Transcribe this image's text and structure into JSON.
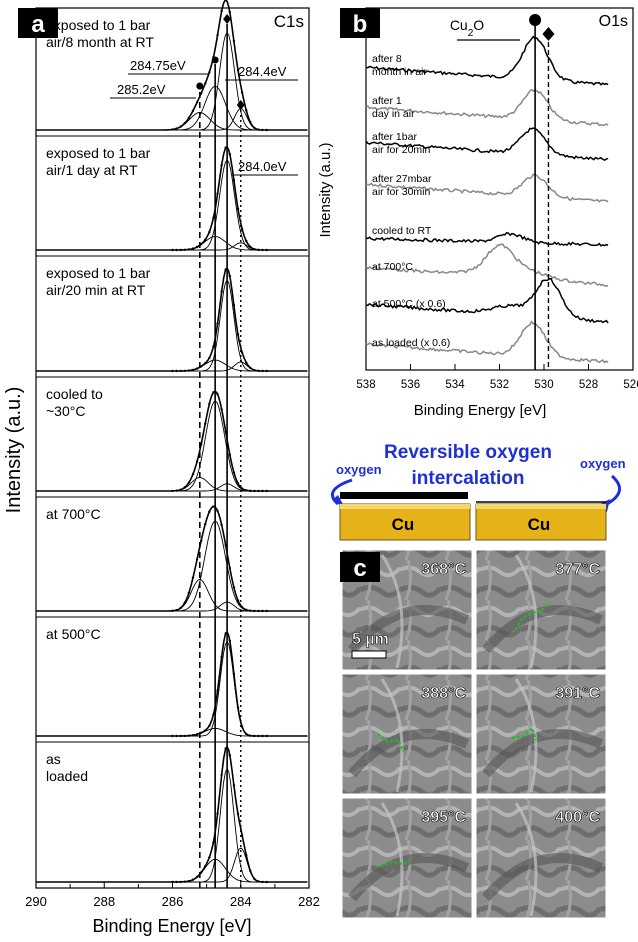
{
  "panel_a": {
    "letter": "a",
    "core_level": "C1s",
    "ylabel": "Intensity (a.u.)",
    "xlabel": "Binding Energy [eV]",
    "x_ticks": [
      "290",
      "288",
      "286",
      "284",
      "282"
    ],
    "peak_labels": [
      "284.75eV",
      "284.4eV",
      "285.2eV",
      "284.0eV"
    ],
    "spectra": [
      {
        "label_lines": [
          "exposed to 1 bar",
          "air/8 month at RT"
        ]
      },
      {
        "label_lines": [
          "exposed to 1 bar",
          "air/1 day at RT"
        ]
      },
      {
        "label_lines": [
          "exposed to 1 bar",
          "air/20 min at RT"
        ]
      },
      {
        "label_lines": [
          "cooled to",
          "~30°C"
        ]
      },
      {
        "label_lines": [
          "at 700°C"
        ]
      },
      {
        "label_lines": [
          "at 500°C"
        ]
      },
      {
        "label_lines": [
          "as",
          "loaded"
        ]
      }
    ]
  },
  "panel_b": {
    "letter": "b",
    "core_level": "O1s",
    "ylabel": "Intensity (a.u.)",
    "xlabel": "Binding Energy [eV]",
    "x_ticks": [
      "538",
      "536",
      "534",
      "532",
      "530",
      "528",
      "526"
    ],
    "species_label": "Cu2O",
    "spectra": [
      {
        "label_lines": [
          "after 8",
          "month in air"
        ],
        "color": "#000000"
      },
      {
        "label_lines": [
          "after 1",
          "day in air"
        ],
        "color": "#888888"
      },
      {
        "label_lines": [
          "after 1bar",
          "air for 20min"
        ],
        "color": "#000000"
      },
      {
        "label_lines": [
          "after 27mbar",
          "air for 30min"
        ],
        "color": "#888888"
      },
      {
        "label_lines": [
          "cooled to RT"
        ],
        "color": "#000000"
      },
      {
        "label_lines": [
          "at 700°C"
        ],
        "color": "#888888"
      },
      {
        "label_lines": [
          "at 500°C (x 0.6)"
        ],
        "color": "#000000"
      },
      {
        "label_lines": [
          "as loaded (x 0.6)"
        ],
        "color": "#888888"
      }
    ]
  },
  "schematic": {
    "title_line1": "Reversible oxygen",
    "title_line2": "intercalation",
    "oxygen_left": "oxygen",
    "oxygen_right": "oxygen",
    "block_left": "Cu",
    "block_right": "Cu",
    "colors": {
      "text": "#1f2fd6",
      "arrow": "#1f2fd6",
      "block": "#e6b21a"
    }
  },
  "panel_c": {
    "letter": "c",
    "temperatures": [
      "368°C",
      "377°C",
      "388°C",
      "391°C",
      "395°C",
      "400°C"
    ],
    "scale_bar": "5 µm"
  },
  "chart_data": [
    {
      "type": "line",
      "title": "C1s",
      "xlabel": "Binding Energy [eV]",
      "ylabel": "Intensity (a.u.)",
      "xlim": [
        290,
        282
      ],
      "x_reversed": true,
      "reference_lines_eV": [
        285.2,
        284.75,
        284.4,
        284.0
      ],
      "series": [
        {
          "name": "exposed to 1 bar air/8 month at RT",
          "components_eV": [
            285.2,
            284.75,
            284.4,
            284.0
          ],
          "amplitudes": [
            0.18,
            0.45,
            1.0,
            0.22
          ],
          "widths": [
            0.3,
            0.3,
            0.22,
            0.18
          ]
        },
        {
          "name": "exposed to 1 bar air/1 day at RT",
          "components_eV": [
            284.75,
            284.4,
            284.0
          ],
          "amplitudes": [
            0.15,
            1.0,
            0.08
          ],
          "widths": [
            0.3,
            0.22,
            0.18
          ]
        },
        {
          "name": "exposed to 1 bar air/20 min at RT",
          "components_eV": [
            284.75,
            284.4,
            284.0
          ],
          "amplitudes": [
            0.12,
            1.0,
            0.1
          ],
          "widths": [
            0.3,
            0.2,
            0.18
          ]
        },
        {
          "name": "cooled to ~30°C",
          "components_eV": [
            285.2,
            284.75,
            284.4
          ],
          "amplitudes": [
            0.15,
            1.0,
            0.08
          ],
          "widths": [
            0.25,
            0.28,
            0.2
          ]
        },
        {
          "name": "at 700°C",
          "components_eV": [
            285.2,
            284.75,
            284.4
          ],
          "amplitudes": [
            0.35,
            1.0,
            0.1
          ],
          "widths": [
            0.25,
            0.3,
            0.2
          ]
        },
        {
          "name": "at 500°C",
          "components_eV": [
            284.75,
            284.4
          ],
          "amplitudes": [
            0.08,
            1.0
          ],
          "widths": [
            0.3,
            0.2
          ]
        },
        {
          "name": "as loaded",
          "components_eV": [
            284.75,
            284.4,
            284.0
          ],
          "amplitudes": [
            0.2,
            1.0,
            0.3
          ],
          "widths": [
            0.3,
            0.2,
            0.18
          ]
        }
      ]
    },
    {
      "type": "line",
      "title": "O1s",
      "xlabel": "Binding Energy [eV]",
      "ylabel": "Intensity (a.u.)",
      "xlim": [
        538,
        526
      ],
      "x_reversed": true,
      "reference_lines_eV": [
        530.4,
        529.8
      ],
      "series": [
        {
          "name": "after 8 month in air",
          "peak_eV": 530.4,
          "amplitude": 1.0
        },
        {
          "name": "after 1 day in air",
          "peak_eV": 530.4,
          "amplitude": 0.7
        },
        {
          "name": "after 1bar air for 20min",
          "peak_eV": 530.5,
          "amplitude": 0.6
        },
        {
          "name": "after 27mbar air for 30min",
          "peak_eV": 530.4,
          "amplitude": 0.5
        },
        {
          "name": "cooled to RT",
          "peak_eV": 531.5,
          "amplitude": 0.2
        },
        {
          "name": "at 700°C",
          "peak_eV": 532.0,
          "amplitude": 0.5
        },
        {
          "name": "at 500°C (x 0.6)",
          "peak_eV": 529.8,
          "amplitude": 0.9
        },
        {
          "name": "as loaded (x 0.6)",
          "peak_eV": 530.5,
          "amplitude": 0.8
        }
      ]
    }
  ]
}
